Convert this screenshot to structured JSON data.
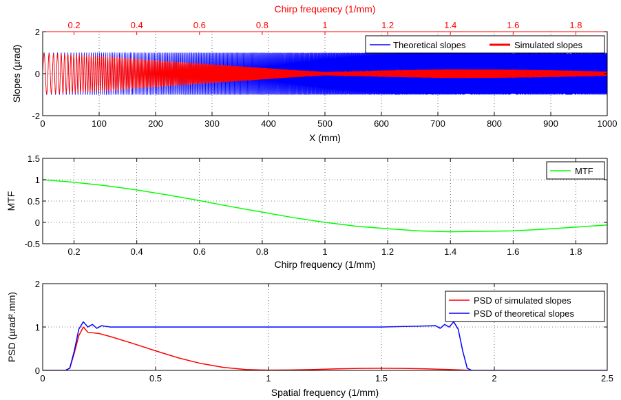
{
  "chart_data": [
    {
      "type": "line",
      "xlabel": "X (mm)",
      "ylabel": "Slopes (µrad)",
      "xlim": [
        0,
        1000
      ],
      "ylim": [
        -2,
        2
      ],
      "xticks": [
        0,
        100,
        200,
        300,
        400,
        500,
        600,
        700,
        800,
        900,
        1000
      ],
      "yticks": [
        -2,
        0,
        2
      ],
      "top_axis": {
        "label": "Chirp frequency (1/mm)",
        "color": "#ff0000",
        "xlim": [
          0.1,
          1.9
        ],
        "xticks": [
          0.2,
          0.4,
          0.6,
          0.8,
          1,
          1.2,
          1.4,
          1.6,
          1.8
        ]
      },
      "grid": true,
      "legend_position": "top-right",
      "series": [
        {
          "name": "Theoretical slopes",
          "color": "#0000ff",
          "amplitude": 1.0
        },
        {
          "name": "Simulated slopes",
          "color": "#ff0000",
          "amplitude_envelope_x": [
            0,
            100,
            200,
            300,
            400,
            500,
            600,
            700,
            800,
            900,
            1000
          ],
          "amplitude_envelope_y": [
            0.97,
            0.83,
            0.63,
            0.44,
            0.25,
            0.06,
            0.14,
            0.2,
            0.2,
            0.16,
            0.1
          ]
        }
      ]
    },
    {
      "type": "line",
      "xlabel": "Chirp frequency (1/mm)",
      "ylabel": "MTF",
      "xlim": [
        0.1,
        1.9
      ],
      "ylim": [
        -0.5,
        1.5
      ],
      "xticks": [
        0.2,
        0.4,
        0.6,
        0.8,
        1,
        1.2,
        1.4,
        1.6,
        1.8
      ],
      "yticks": [
        -0.5,
        0,
        0.5,
        1,
        1.5
      ],
      "grid": true,
      "legend_position": "top-right",
      "series": [
        {
          "name": "MTF",
          "color": "#00ff00",
          "x": [
            0.1,
            0.2,
            0.3,
            0.4,
            0.5,
            0.6,
            0.7,
            0.8,
            0.9,
            1.0,
            1.1,
            1.2,
            1.3,
            1.4,
            1.5,
            1.6,
            1.7,
            1.8,
            1.9
          ],
          "y": [
            1.0,
            0.94,
            0.86,
            0.76,
            0.64,
            0.51,
            0.37,
            0.24,
            0.11,
            0.0,
            -0.09,
            -0.15,
            -0.2,
            -0.22,
            -0.21,
            -0.2,
            -0.16,
            -0.11,
            -0.06
          ]
        }
      ]
    },
    {
      "type": "line",
      "xlabel": "Spatial frequency (1/mm)",
      "ylabel": "PSD (µrad².mm)",
      "xlim": [
        0,
        2.5
      ],
      "ylim": [
        0,
        2
      ],
      "xticks": [
        0,
        0.5,
        1,
        1.5,
        2,
        2.5
      ],
      "yticks": [
        0,
        1,
        2
      ],
      "grid": true,
      "legend_position": "top-right",
      "series": [
        {
          "name": "PSD of simulated slopes",
          "color": "#ff0000",
          "x": [
            0,
            0.1,
            0.12,
            0.14,
            0.16,
            0.18,
            0.2,
            0.25,
            0.3,
            0.4,
            0.5,
            0.6,
            0.7,
            0.8,
            0.9,
            1.0,
            1.1,
            1.2,
            1.3,
            1.4,
            1.5,
            1.6,
            1.7,
            1.8,
            1.85,
            1.9,
            2.0,
            2.5
          ],
          "y": [
            0,
            0,
            0.05,
            0.4,
            0.8,
            1.0,
            0.88,
            0.85,
            0.78,
            0.62,
            0.45,
            0.29,
            0.16,
            0.07,
            0.02,
            0.005,
            0.01,
            0.02,
            0.035,
            0.045,
            0.05,
            0.045,
            0.035,
            0.02,
            0.01,
            0.0,
            0,
            0
          ]
        },
        {
          "name": "PSD of theoretical slopes",
          "color": "#0000ff",
          "x": [
            0,
            0.1,
            0.12,
            0.14,
            0.16,
            0.18,
            0.2,
            0.22,
            0.24,
            0.26,
            0.3,
            0.5,
            1.0,
            1.5,
            1.74,
            1.76,
            1.78,
            1.8,
            1.82,
            1.84,
            1.86,
            1.88,
            1.9,
            2.0,
            2.5
          ],
          "y": [
            0,
            0,
            0.05,
            0.45,
            0.95,
            1.12,
            1.0,
            1.06,
            0.97,
            1.03,
            1.0,
            1.0,
            1.0,
            1.0,
            1.03,
            0.97,
            1.06,
            1.0,
            1.12,
            0.95,
            0.45,
            0.05,
            0,
            0,
            0
          ]
        }
      ]
    }
  ]
}
